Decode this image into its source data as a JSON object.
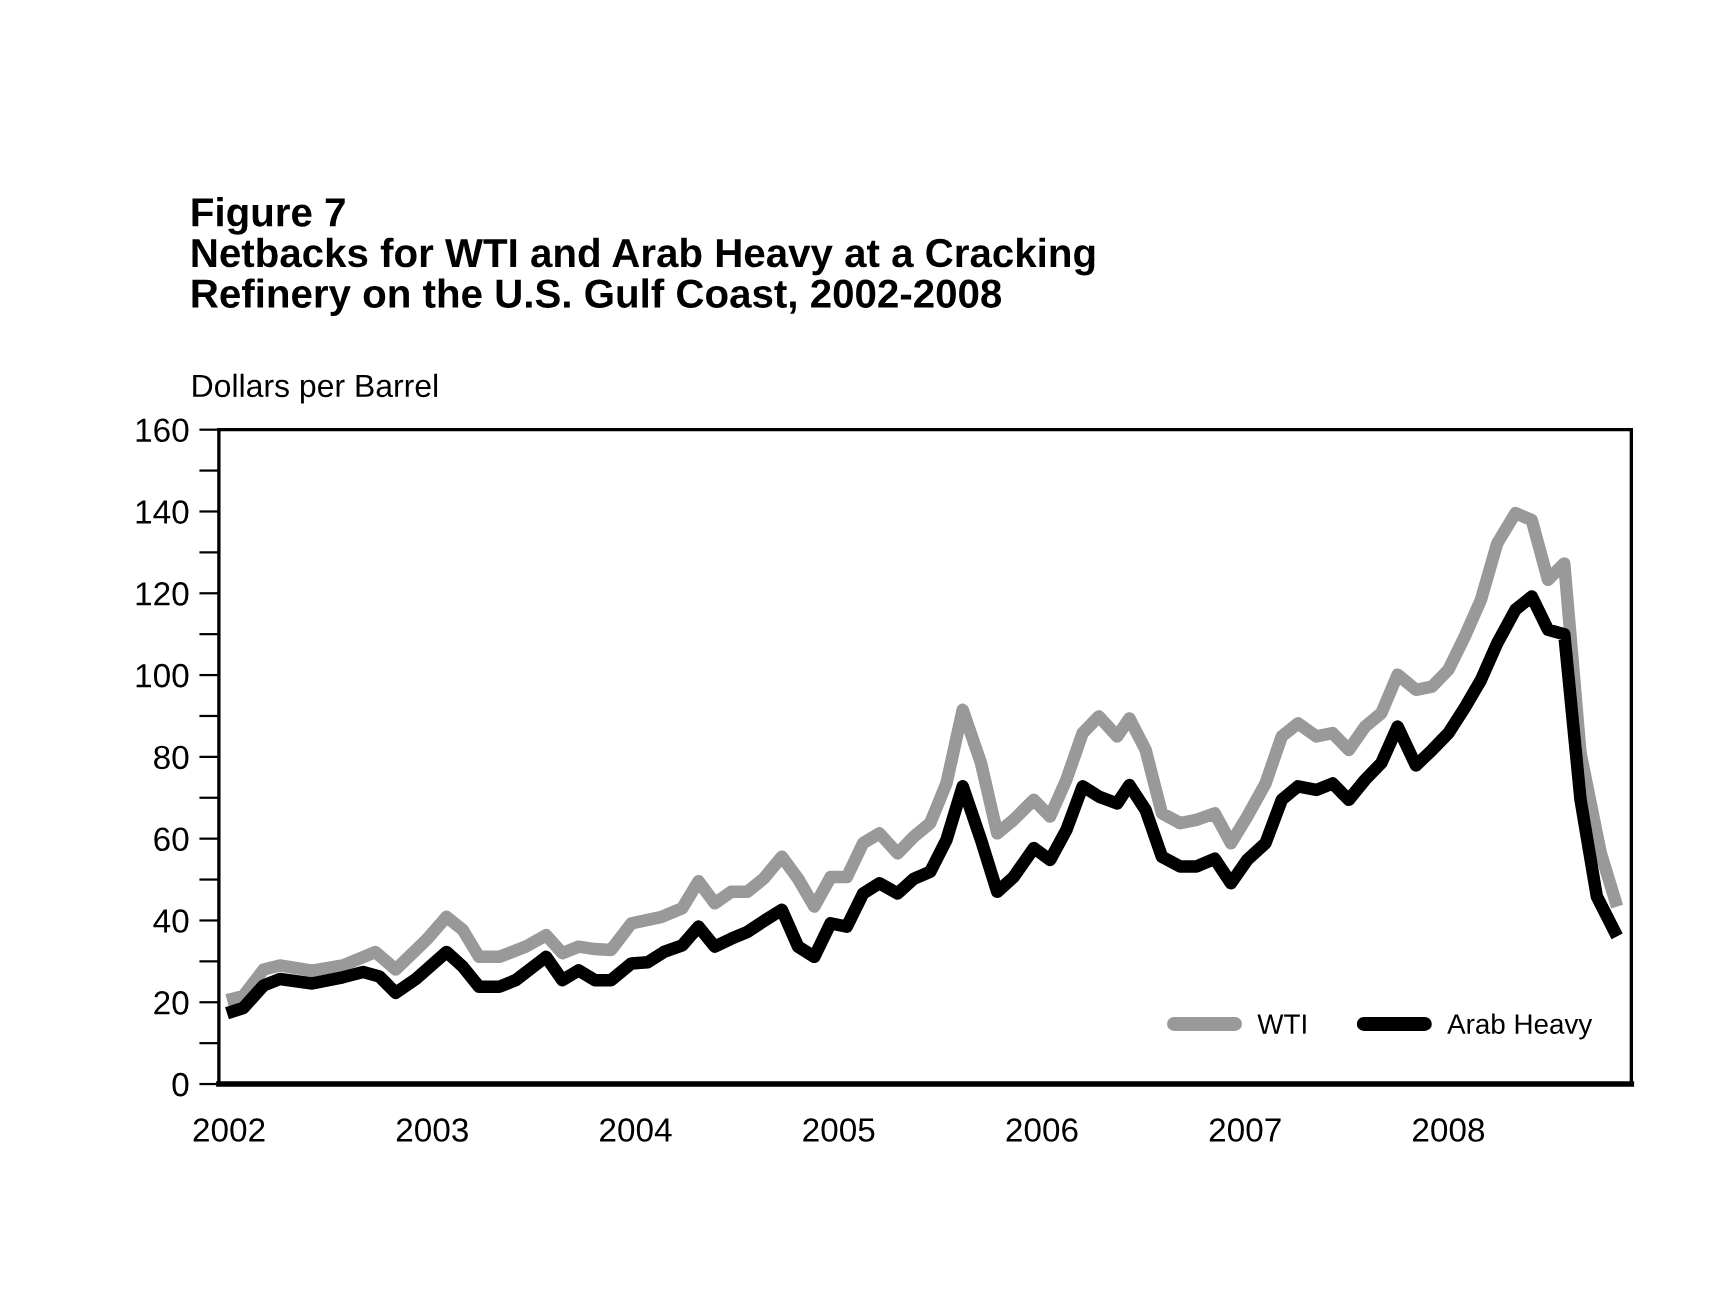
{
  "chart_data": {
    "type": "line",
    "title": "Figure 7\nNetbacks for WTI and Arab Heavy at a Cracking\nRefinery on the U.S. Gulf Coast, 2002-2008",
    "ylabel": "Dollars per Barrel",
    "xlim": [
      2001.95,
      2008.9
    ],
    "xticks": [
      2002,
      2003,
      2004,
      2005,
      2006,
      2007,
      2008
    ],
    "ylim": [
      0,
      160
    ],
    "yticks": [
      0,
      {
        "value": 10,
        "label": null
      },
      20,
      {
        "value": 30,
        "label": null
      },
      40,
      {
        "value": 50,
        "label": null
      },
      60,
      {
        "value": 70,
        "label": null
      },
      80,
      {
        "value": 90,
        "label": null
      },
      100,
      {
        "value": 110,
        "label": null
      },
      120,
      {
        "value": 130,
        "label": null
      },
      140,
      {
        "value": 150,
        "label": null
      },
      160
    ],
    "grid": false,
    "legend": "bottom right",
    "line_style": "solid",
    "marker": "none",
    "series": [
      {
        "name": "WTI",
        "color": "#999999",
        "x": [
          2001.99,
          2002.07,
          2002.17,
          2002.25,
          2002.41,
          2002.56,
          2002.72,
          2002.82,
          2002.97,
          2003.07,
          2003.15,
          2003.23,
          2003.33,
          2003.46,
          2003.56,
          2003.64,
          2003.72,
          2003.8,
          2003.88,
          2003.98,
          2004.13,
          2004.23,
          2004.31,
          2004.39,
          2004.47,
          2004.55,
          2004.63,
          2004.72,
          2004.8,
          2004.88,
          2004.96,
          2005.04,
          2005.12,
          2005.2,
          2005.29,
          2005.37,
          2005.45,
          2005.53,
          2005.61,
          2005.7,
          2005.78,
          2005.86,
          2005.96,
          2006.04,
          2006.12,
          2006.2,
          2006.28,
          2006.37,
          2006.43,
          2006.51,
          2006.59,
          2006.68,
          2006.76,
          2006.85,
          2006.93,
          2007.01,
          2007.1,
          2007.18,
          2007.26,
          2007.35,
          2007.43,
          2007.51,
          2007.59,
          2007.67,
          2007.75,
          2007.84,
          2007.92,
          2008.0,
          2008.08,
          2008.16,
          2008.24,
          2008.33,
          2008.41,
          2008.49,
          2008.57,
          2008.65,
          2008.75,
          2008.83
        ],
        "values": [
          20.5,
          21.5,
          28,
          29,
          27.7,
          29,
          32.3,
          28,
          35.2,
          40.9,
          37.7,
          31.1,
          31.1,
          33.6,
          36.4,
          32,
          33.6,
          33,
          32.8,
          39.3,
          40.9,
          43,
          49.6,
          44.2,
          47,
          47,
          50.2,
          55.6,
          50.2,
          43.4,
          50.6,
          50.6,
          58.9,
          61.3,
          56.4,
          60.5,
          63.8,
          73.5,
          91.5,
          78.5,
          61.3,
          64.6,
          69.5,
          65.4,
          74.4,
          85.8,
          89.9,
          85,
          89.4,
          81.7,
          66.2,
          63.8,
          64.6,
          66.2,
          58.9,
          65.4,
          73.5,
          85,
          88.2,
          85,
          85.8,
          81.7,
          87.4,
          90.7,
          100.1,
          96.4,
          97.2,
          101.3,
          109.4,
          118.4,
          132.2,
          139.6,
          137.9,
          123.3,
          127.3,
          80.9,
          56.4,
          43.4
        ]
      },
      {
        "name": "Arab Heavy",
        "color": "#000000",
        "x": [
          2001.99,
          2002.07,
          2002.17,
          2002.25,
          2002.41,
          2002.56,
          2002.66,
          2002.74,
          2002.82,
          2002.92,
          2003.07,
          2003.15,
          2003.23,
          2003.33,
          2003.41,
          2003.56,
          2003.64,
          2003.72,
          2003.8,
          2003.88,
          2003.98,
          2004.06,
          2004.14,
          2004.23,
          2004.31,
          2004.39,
          2004.47,
          2004.55,
          2004.63,
          2004.72,
          2004.8,
          2004.88,
          2004.96,
          2005.04,
          2005.12,
          2005.2,
          2005.29,
          2005.37,
          2005.45,
          2005.53,
          2005.61,
          2005.7,
          2005.78,
          2005.86,
          2005.96,
          2006.04,
          2006.12,
          2006.2,
          2006.28,
          2006.37,
          2006.43,
          2006.51,
          2006.59,
          2006.68,
          2006.76,
          2006.85,
          2006.93,
          2007.01,
          2007.1,
          2007.18,
          2007.26,
          2007.35,
          2007.43,
          2007.51,
          2007.59,
          2007.67,
          2007.75,
          2007.84,
          2007.92,
          2008.0,
          2008.08,
          2008.16,
          2008.24,
          2008.33,
          2008.41,
          2008.49,
          2008.57,
          2008.65,
          2008.73,
          2008.83
        ],
        "values": [
          17.3,
          18.6,
          24.1,
          25.7,
          24.6,
          26.1,
          27.4,
          26.3,
          22.3,
          25.7,
          32.3,
          28.7,
          23.8,
          23.8,
          25.4,
          31.1,
          25.4,
          27.8,
          25.4,
          25.4,
          29.5,
          29.8,
          32.3,
          33.9,
          38.5,
          33.6,
          35.5,
          37.2,
          39.8,
          42.6,
          33.6,
          31.1,
          39.3,
          38.5,
          46.6,
          49.1,
          46.6,
          50.2,
          51.9,
          59.7,
          72.8,
          59.7,
          47,
          50.6,
          57.7,
          54.8,
          62.1,
          72.8,
          70.3,
          68.6,
          73.1,
          67,
          55.6,
          53.2,
          53.2,
          55.1,
          49.1,
          54.8,
          58.9,
          69.5,
          72.8,
          71.9,
          73.5,
          69.5,
          74.4,
          78.5,
          87.4,
          77.9,
          81.7,
          85.8,
          92,
          98.8,
          107.8,
          116,
          119.2,
          111.1,
          110,
          69.5,
          45.9,
          36.1
        ]
      }
    ]
  }
}
